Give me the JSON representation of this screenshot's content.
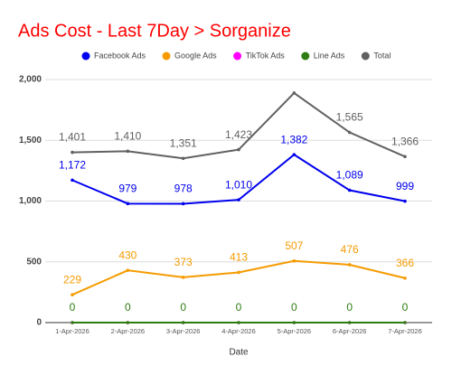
{
  "chart_data": {
    "type": "line",
    "title": "Ads Cost - Last 7Day > Sorganize",
    "x_label": "Date",
    "categories": [
      "1-Apr-2026",
      "2-Apr-2026",
      "3-Apr-2026",
      "4-Apr-2026",
      "5-Apr-2026",
      "6-Apr-2026",
      "7-Apr-2026"
    ],
    "series": [
      {
        "name": "Facebook Ads",
        "color": "#0000ee",
        "data_labels": true,
        "values": [
          1172,
          979,
          978,
          1010,
          1382,
          1089,
          999
        ],
        "value_labels": [
          "1,172",
          "979",
          "978",
          "1,010",
          "1,382",
          "1,089",
          "999"
        ]
      },
      {
        "name": "Google Ads",
        "color": "#f59b00",
        "data_labels": true,
        "values": [
          229,
          430,
          373,
          413,
          507,
          476,
          366
        ]
      },
      {
        "name": "TikTok Ads",
        "color": "#ff00ff",
        "data_labels": false,
        "values": [
          0,
          0,
          0,
          0,
          0,
          0,
          0
        ]
      },
      {
        "name": "Line Ads",
        "color": "#2e7d12",
        "data_labels": true,
        "values": [
          0,
          0,
          0,
          0,
          0,
          0,
          0
        ]
      },
      {
        "name": "Total",
        "color": "#616161",
        "data_labels": true,
        "values": [
          1401,
          1410,
          1351,
          1423,
          1889,
          1565,
          1366
        ],
        "value_labels": [
          "1,401",
          "1,410",
          "1,351",
          "1,423",
          null,
          "1,565",
          "1,366"
        ]
      }
    ],
    "ylim": [
      0,
      2000
    ],
    "yticks": [
      0,
      500,
      {
        "value": 1000,
        "label": "1,000"
      },
      {
        "value": 1500,
        "label": "1,500"
      },
      {
        "value": 2000,
        "label": "2,000"
      }
    ],
    "grid": true,
    "legend": "top"
  }
}
